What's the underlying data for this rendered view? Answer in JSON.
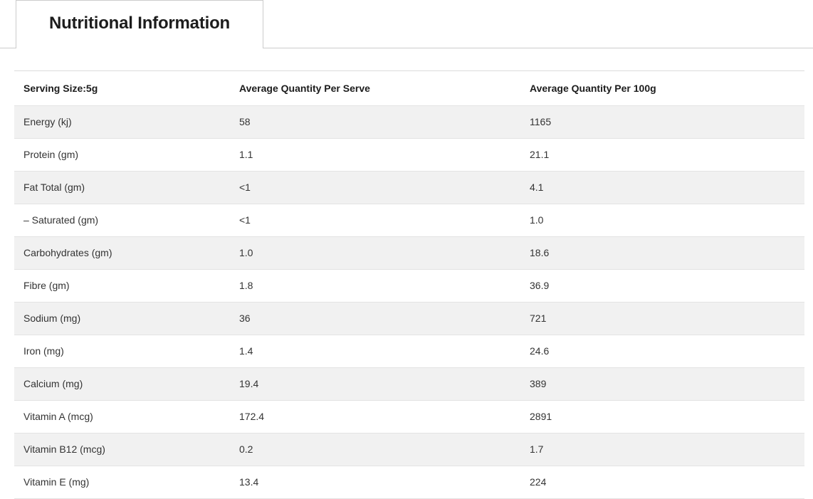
{
  "tab": {
    "label": "Nutritional Information",
    "active": true
  },
  "table": {
    "columns": [
      "Serving Size:5g",
      "Average Quantity Per Serve",
      "Average Quantity Per 100g"
    ],
    "rows": [
      {
        "nutrient": "Energy (kj)",
        "per_serve": "58",
        "per_100g": "1165"
      },
      {
        "nutrient": "Protein (gm)",
        "per_serve": "1.1",
        "per_100g": "21.1"
      },
      {
        "nutrient": "Fat Total (gm)",
        "per_serve": "<1",
        "per_100g": "4.1"
      },
      {
        "nutrient": "– Saturated (gm)",
        "per_serve": "<1",
        "per_100g": "1.0"
      },
      {
        "nutrient": "Carbohydrates (gm)",
        "per_serve": "1.0",
        "per_100g": "18.6"
      },
      {
        "nutrient": "Fibre (gm)",
        "per_serve": "1.8",
        "per_100g": "36.9"
      },
      {
        "nutrient": "Sodium (mg)",
        "per_serve": "36",
        "per_100g": "721"
      },
      {
        "nutrient": "Iron (mg)",
        "per_serve": "1.4",
        "per_100g": "24.6"
      },
      {
        "nutrient": "Calcium (mg)",
        "per_serve": "19.4",
        "per_100g": "389"
      },
      {
        "nutrient": "Vitamin A (mcg)",
        "per_serve": "172.4",
        "per_100g": "2891"
      },
      {
        "nutrient": "Vitamin B12 (mcg)",
        "per_serve": "0.2",
        "per_100g": "1.7"
      },
      {
        "nutrient": "Vitamin E (mg)",
        "per_serve": "13.4",
        "per_100g": "224"
      }
    ]
  },
  "colors": {
    "stripe": "#f1f1f1",
    "tab_border": "#cccccc",
    "row_border": "#e3e3e3",
    "table_top_border": "#dcdcdc",
    "text": "#333333",
    "heading_text": "#1c1c1c"
  }
}
